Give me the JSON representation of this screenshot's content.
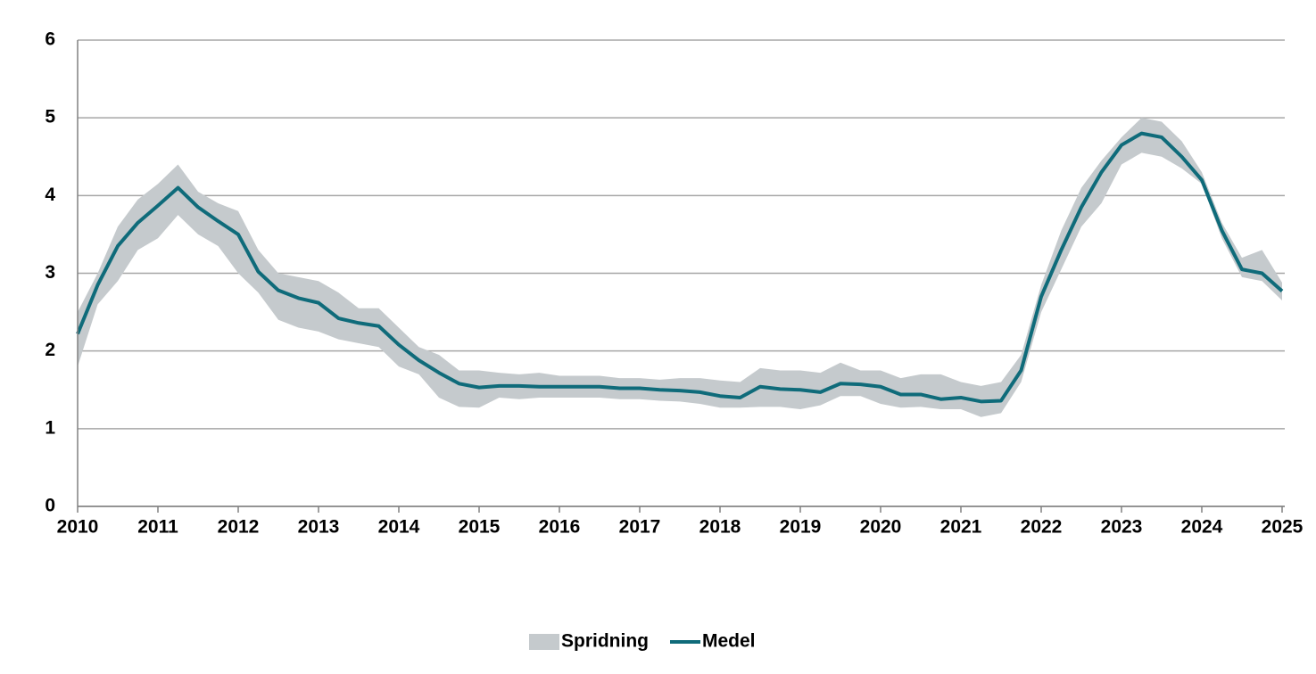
{
  "chart_data": {
    "type": "line",
    "x": [
      2010,
      2010.25,
      2010.5,
      2010.75,
      2011,
      2011.25,
      2011.5,
      2011.75,
      2012,
      2012.25,
      2012.5,
      2012.75,
      2013,
      2013.25,
      2013.5,
      2013.75,
      2014,
      2014.25,
      2014.5,
      2014.75,
      2015,
      2015.25,
      2015.5,
      2015.75,
      2016,
      2016.25,
      2016.5,
      2016.75,
      2017,
      2017.25,
      2017.5,
      2017.75,
      2018,
      2018.25,
      2018.5,
      2018.75,
      2019,
      2019.25,
      2019.5,
      2019.75,
      2020,
      2020.25,
      2020.5,
      2020.75,
      2021,
      2021.25,
      2021.5,
      2021.75,
      2022,
      2022.25,
      2022.5,
      2022.75,
      2023,
      2023.25,
      2023.5,
      2023.75,
      2024,
      2024.25,
      2024.5,
      2024.75,
      2025
    ],
    "series": [
      {
        "name": "Spridning",
        "type": "band",
        "color": "#c5cacd",
        "low": [
          1.8,
          2.6,
          2.9,
          3.3,
          3.45,
          3.75,
          3.5,
          3.35,
          3.0,
          2.75,
          2.4,
          2.3,
          2.25,
          2.15,
          2.1,
          2.05,
          1.8,
          1.7,
          1.4,
          1.28,
          1.27,
          1.4,
          1.38,
          1.4,
          1.4,
          1.4,
          1.4,
          1.38,
          1.38,
          1.36,
          1.35,
          1.32,
          1.27,
          1.27,
          1.28,
          1.28,
          1.25,
          1.3,
          1.42,
          1.42,
          1.32,
          1.27,
          1.28,
          1.25,
          1.25,
          1.15,
          1.2,
          1.6,
          2.5,
          3.05,
          3.6,
          3.9,
          4.4,
          4.55,
          4.5,
          4.35,
          4.15,
          3.45,
          2.95,
          2.9,
          2.65
        ],
        "high": [
          2.5,
          3.0,
          3.6,
          3.95,
          4.15,
          4.4,
          4.05,
          3.9,
          3.8,
          3.3,
          3.0,
          2.95,
          2.9,
          2.75,
          2.55,
          2.55,
          2.3,
          2.05,
          1.95,
          1.75,
          1.75,
          1.72,
          1.7,
          1.72,
          1.68,
          1.68,
          1.68,
          1.65,
          1.65,
          1.63,
          1.65,
          1.65,
          1.62,
          1.6,
          1.78,
          1.75,
          1.75,
          1.72,
          1.85,
          1.75,
          1.75,
          1.65,
          1.7,
          1.7,
          1.6,
          1.55,
          1.6,
          1.95,
          2.85,
          3.55,
          4.1,
          4.45,
          4.75,
          5.0,
          4.95,
          4.7,
          4.3,
          3.65,
          3.2,
          3.3,
          2.88
        ]
      },
      {
        "name": "Medel",
        "color": "#0f6b7a",
        "values": [
          2.22,
          2.85,
          3.35,
          3.65,
          3.87,
          4.1,
          3.85,
          3.67,
          3.5,
          3.02,
          2.78,
          2.68,
          2.62,
          2.42,
          2.36,
          2.32,
          2.08,
          1.88,
          1.72,
          1.58,
          1.53,
          1.55,
          1.55,
          1.54,
          1.54,
          1.54,
          1.54,
          1.52,
          1.52,
          1.5,
          1.49,
          1.47,
          1.42,
          1.4,
          1.54,
          1.51,
          1.5,
          1.47,
          1.58,
          1.57,
          1.54,
          1.44,
          1.44,
          1.38,
          1.4,
          1.35,
          1.36,
          1.75,
          2.7,
          3.3,
          3.85,
          4.3,
          4.65,
          4.8,
          4.75,
          4.5,
          4.2,
          3.55,
          3.05,
          3.0,
          2.77
        ]
      }
    ],
    "xlim": [
      2010,
      2025
    ],
    "xticks": [
      2010,
      2011,
      2012,
      2013,
      2014,
      2015,
      2016,
      2017,
      2018,
      2019,
      2020,
      2021,
      2022,
      2023,
      2024,
      2025
    ],
    "ylim": [
      0,
      6
    ],
    "yticks": [
      0,
      1,
      2,
      3,
      4,
      5,
      6
    ],
    "grid": true,
    "legend": "bottom"
  }
}
